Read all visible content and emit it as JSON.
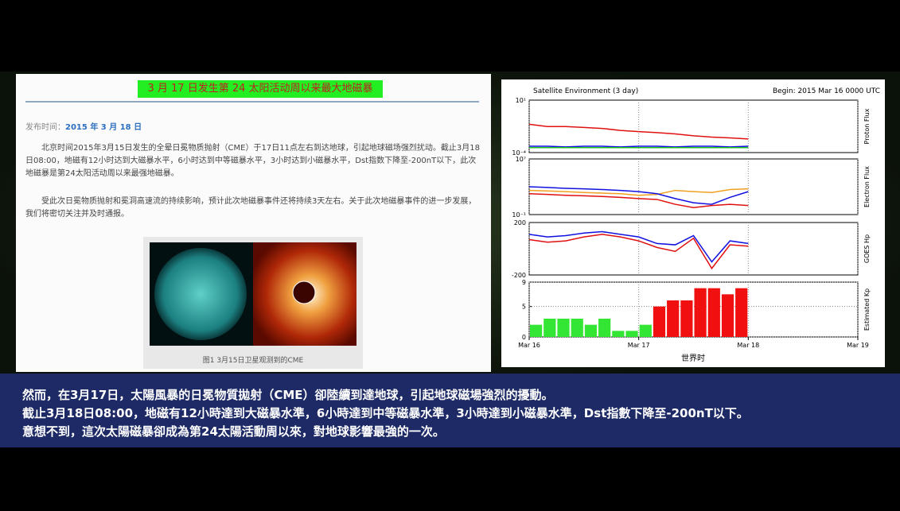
{
  "article": {
    "title": "3 月 17 日发生第 24 太阳活动周以来最大地磁暴",
    "date_label": "发布时间：",
    "date": "2015 年 3 月 18 日",
    "paragraphs": [
      "北京时间2015年3月15日发生的全晕日冕物质抛射（CME）于17日11点左右到达地球，引起地球磁场强烈扰动。截止3月18日08:00，地磁有12小时达到大磁暴水平，6小时达到中等磁暴水平，3小时达到小磁暴水平，Dst指数下降至-200nT以下，此次地磁暴是第24太阳活动周以来最强地磁暴。",
      "受此次日冕物质抛射和冕洞高速流的持续影响，预计此次地磁暴事件还将持续3天左右。关于此次地磁暴事件的进一步发展，我们将密切关注并及时通报。"
    ],
    "figure_caption": "图1 3月15日卫星观测到的CME"
  },
  "header": {
    "title": "Satellite Environment (3 day)",
    "begin": "Begin:  2015 Mar 16 0000 UTC",
    "xlabel": "世界时"
  },
  "chart_data": [
    {
      "type": "line",
      "ylabel": "Proton Flux",
      "log": true,
      "xlim": [
        0,
        72
      ],
      "ylim": [
        0.0001,
        10
      ],
      "yticks": [
        {
          "value": 10,
          "label": "10¹"
        },
        {
          "value": 0.0001,
          "label": "10⁻⁴"
        }
      ],
      "x": [
        0,
        4,
        8,
        12,
        16,
        20,
        24,
        28,
        32,
        36,
        40,
        44,
        48
      ],
      "series": [
        {
          "color": "#e01010",
          "values": [
            0.05,
            0.03,
            0.03,
            0.025,
            0.02,
            0.013,
            0.01,
            0.008,
            0.006,
            0.004,
            0.003,
            0.0025,
            0.002
          ]
        },
        {
          "color": "#1010e0",
          "values": [
            0.0004,
            0.0004,
            0.00035,
            0.0004,
            0.0004,
            0.00035,
            0.0004,
            0.0004,
            0.00035,
            0.0004,
            0.0004,
            0.00035,
            0.0004
          ]
        },
        {
          "color": "#20c020",
          "values": [
            0.0003,
            0.0003,
            0.0003,
            0.0003,
            0.0003,
            0.0003,
            0.0003,
            0.0003,
            0.0003,
            0.0003,
            0.0003,
            0.0003,
            0.0003
          ]
        }
      ]
    },
    {
      "type": "line",
      "ylabel": "Electron Flux",
      "log": true,
      "xlim": [
        0,
        72
      ],
      "ylim": [
        0.1,
        10000000
      ],
      "yticks": [
        {
          "value": 10000000,
          "label": "10⁷"
        },
        {
          "value": 0.1,
          "label": "10⁻¹"
        }
      ],
      "x": [
        0,
        4,
        8,
        12,
        16,
        20,
        24,
        28,
        32,
        36,
        40,
        44,
        48
      ],
      "series": [
        {
          "color": "#f0a020",
          "values": [
            300,
            250,
            200,
            150,
            120,
            100,
            60,
            80,
            300,
            200,
            150,
            400,
            500
          ]
        },
        {
          "color": "#1010e0",
          "values": [
            1000,
            800,
            600,
            500,
            400,
            300,
            200,
            100,
            20,
            5,
            3,
            30,
            200
          ]
        },
        {
          "color": "#e01010",
          "values": [
            100,
            80,
            60,
            50,
            40,
            30,
            20,
            15,
            3,
            1,
            2,
            3,
            2
          ]
        }
      ]
    },
    {
      "type": "line",
      "ylabel": "GOES Hp",
      "log": false,
      "xlim": [
        0,
        72
      ],
      "ylim": [
        -200,
        200
      ],
      "yticks": [
        200,
        -200
      ],
      "x": [
        0,
        4,
        8,
        12,
        16,
        20,
        24,
        28,
        32,
        36,
        40,
        44,
        48
      ],
      "series": [
        {
          "color": "#1010e0",
          "values": [
            110,
            90,
            100,
            120,
            130,
            110,
            90,
            40,
            30,
            100,
            -100,
            60,
            40
          ]
        },
        {
          "color": "#e01010",
          "values": [
            70,
            50,
            60,
            90,
            110,
            90,
            60,
            10,
            -20,
            80,
            -150,
            30,
            20
          ]
        }
      ]
    },
    {
      "type": "bar",
      "ylabel": "Estimated Kp",
      "log": false,
      "xlim": [
        0,
        72
      ],
      "ylim": [
        0,
        9
      ],
      "yticks": [
        0,
        5,
        9
      ],
      "x": [
        0,
        3,
        6,
        9,
        12,
        15,
        18,
        21,
        24,
        27,
        30,
        33,
        36,
        39,
        42,
        45
      ],
      "values": [
        2,
        3,
        3,
        3,
        2,
        3,
        1,
        1,
        2,
        5,
        6,
        6,
        8,
        8,
        7,
        8
      ],
      "colors": [
        "#33e633",
        "#33e633",
        "#33e633",
        "#33e633",
        "#33e633",
        "#33e633",
        "#33e633",
        "#33e633",
        "#33e633",
        "#f01010",
        "#f01010",
        "#f01010",
        "#f01010",
        "#f01010",
        "#f01010",
        "#f01010"
      ],
      "xticks": [
        {
          "value": 0,
          "label": "Mar 16"
        },
        {
          "value": 24,
          "label": "Mar 17"
        },
        {
          "value": 48,
          "label": "Mar 18"
        },
        {
          "value": 72,
          "label": "Mar 19"
        }
      ]
    }
  ],
  "caption": {
    "lines": [
      "然而，在3月17日，太陽風暴的日冕物質拋射（CME）卻陸續到達地球，引起地球磁場強烈的擾動。",
      "截止3月18日08:00，地磁有12小時達到大磁暴水準，6小時達到中等磁暴水準，3小時達到小磁暴水準，Dst指數下降至-200nT以下。",
      "意想不到，這次太陽磁暴卻成為第24太陽活動周以來，對地球影響最強的一次。"
    ]
  }
}
